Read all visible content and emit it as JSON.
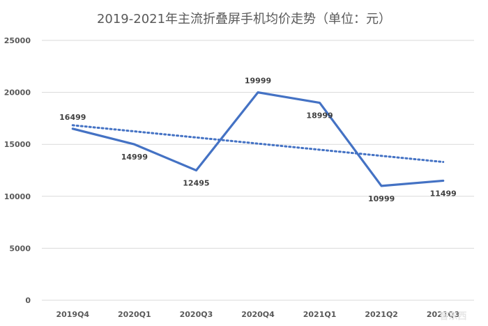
{
  "chart_data": {
    "type": "line",
    "title": "2019-2021年主流折叠屏手机均价走势（单位：元）",
    "categories": [
      "2019Q4",
      "2020Q1",
      "2020Q3",
      "2020Q4",
      "2021Q1",
      "2021Q2",
      "2021Q3"
    ],
    "series": [
      {
        "values": [
          16499,
          14999,
          12495,
          19999,
          18999,
          10999,
          11499
        ],
        "data_labels": [
          "16499",
          "14999",
          "12495",
          "19999",
          "18999",
          "10999",
          "11499"
        ],
        "color": "#4472c4"
      }
    ],
    "trendline": {
      "type": "linear",
      "style": "dotted",
      "color": "#4472c4"
    },
    "ylim": [
      0,
      25000
    ],
    "yticks": [
      0,
      5000,
      10000,
      15000,
      20000,
      25000
    ],
    "ytick_labels": [
      "0",
      "5000",
      "10000",
      "15000",
      "20000",
      "25000"
    ],
    "grid": true,
    "xlabel": "",
    "ylabel": ""
  },
  "watermark": "智东西"
}
